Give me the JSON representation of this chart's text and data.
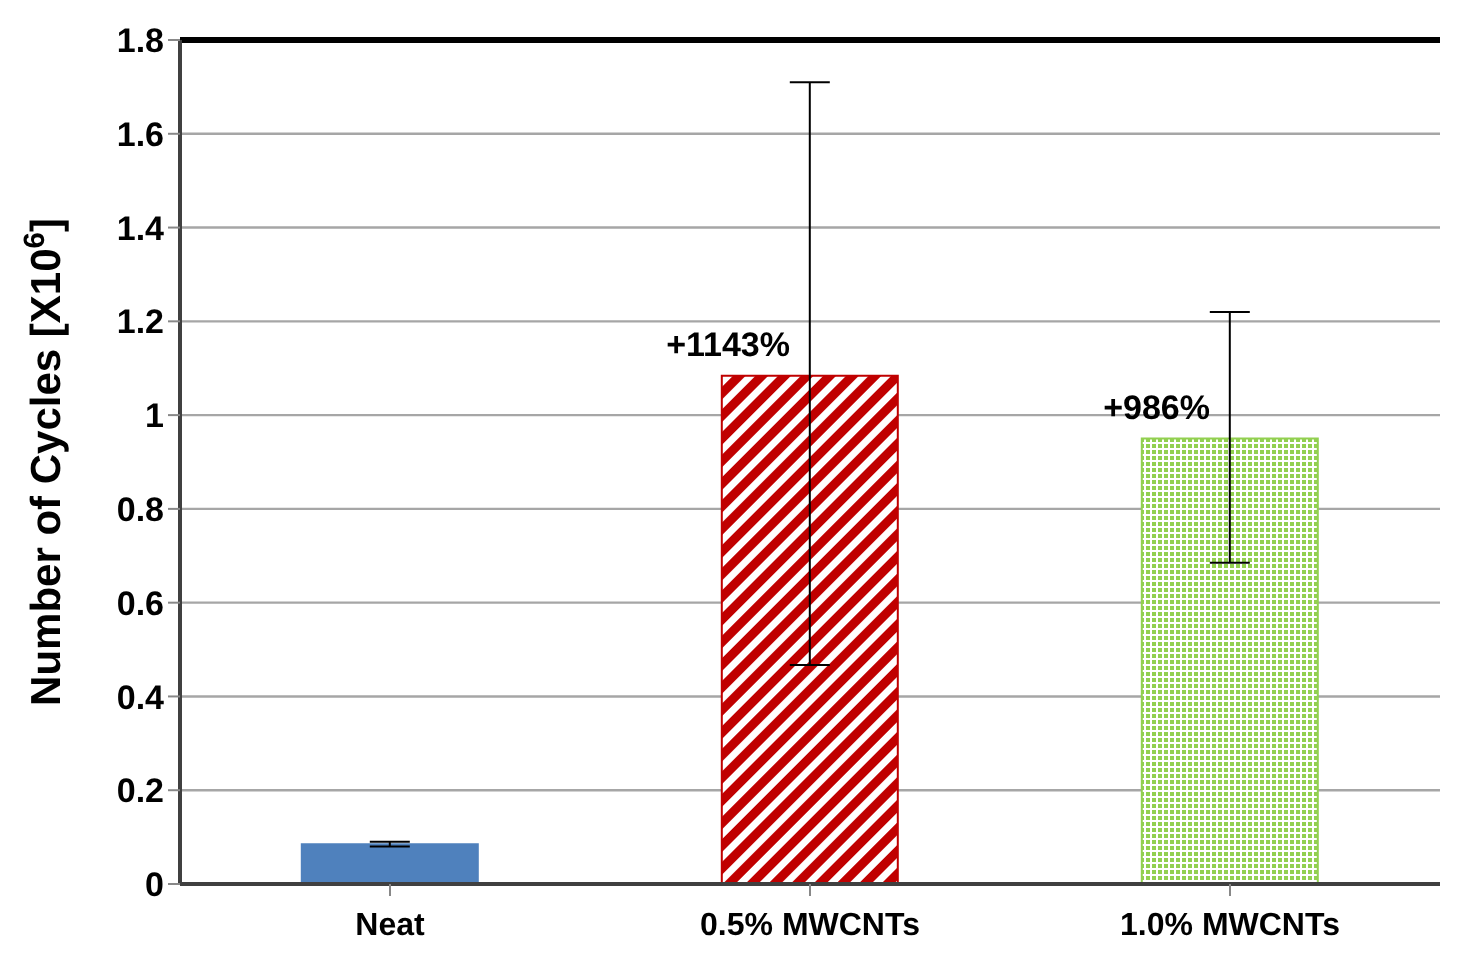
{
  "chart_data": {
    "type": "bar",
    "ylabel": "Number of Cycles [X10$^{6}$]",
    "categories": [
      "Neat",
      "0.5% MWCNTs",
      "1.0% MWCNTs"
    ],
    "values": [
      0.085,
      1.084,
      0.95
    ],
    "colors": [
      "#4f81bd",
      "#c00000",
      "#92d050"
    ],
    "errors": [
      0.005,
      [
        0.467,
        1.71
      ],
      [
        0.685,
        1.22
      ]
    ],
    "annotations": [
      {
        "text": "+1143%",
        "x": "0.5% MWCNTs",
        "y": 1.084
      },
      {
        "text": "+986%",
        "x": "1.0% MWCNTs",
        "y": 0.95
      }
    ],
    "ylim": [
      0,
      1.8
    ],
    "yticks": [
      0,
      0.2,
      0.4,
      0.6,
      0.8,
      1,
      1.2,
      1.4,
      1.6,
      1.8
    ],
    "grid": "y"
  }
}
